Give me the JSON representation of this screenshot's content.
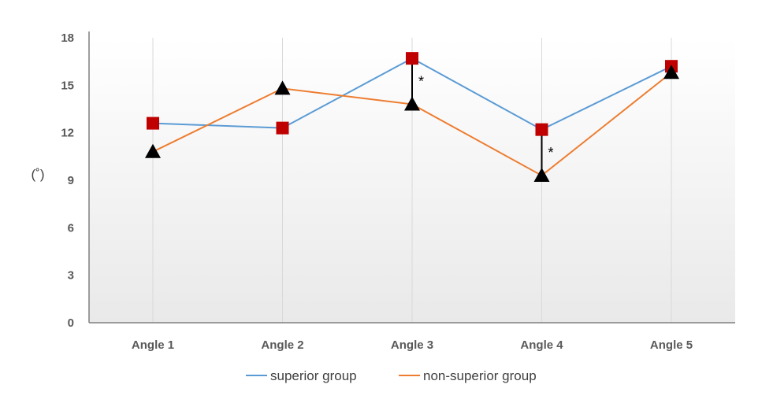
{
  "chart_data": {
    "type": "line",
    "title": "",
    "xlabel": "",
    "ylabel": "(˚)",
    "categories": [
      "Angle 1",
      "Angle 2",
      "Angle 3",
      "Angle 4",
      "Angle 5"
    ],
    "ylim": [
      0,
      18
    ],
    "yticks": [
      "0",
      "3",
      "6",
      "9",
      "12",
      "15",
      "18"
    ],
    "grid": "vertical gridlines at categories, gradient plot background",
    "legend_position": "bottom",
    "series": [
      {
        "name": "superior group",
        "values": [
          12.6,
          12.3,
          16.7,
          12.2,
          16.2
        ],
        "line_color": "#5B9BD5",
        "marker": "square",
        "marker_color": "#C00000"
      },
      {
        "name": "non-superior group",
        "values": [
          10.8,
          14.8,
          13.8,
          9.3,
          15.8
        ],
        "line_color": "#ED7D31",
        "marker": "triangle",
        "marker_color": "#000000"
      }
    ],
    "annotations": [
      {
        "category": "Angle 3",
        "text": "*"
      },
      {
        "category": "Angle 4",
        "text": "*"
      }
    ]
  }
}
